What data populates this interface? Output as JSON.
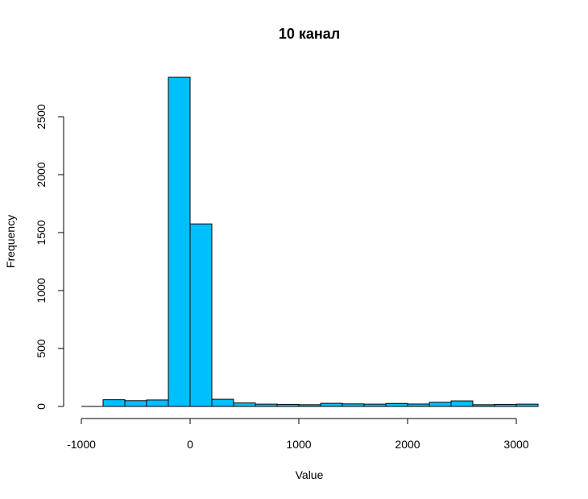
{
  "chart_data": {
    "type": "bar",
    "title": "10  канал",
    "xlabel": "Value",
    "ylabel": "Frequency",
    "bar_color": "#00BFFF",
    "bin_width": 200,
    "x_range": [
      -1000,
      3200
    ],
    "xlim": [
      -1000,
      3200
    ],
    "ylim": [
      0,
      2850
    ],
    "x_ticks": [
      -1000,
      0,
      1000,
      2000,
      3000
    ],
    "x_tick_labels": [
      "-1000",
      "0",
      "1000",
      "2000",
      "3000"
    ],
    "y_ticks": [
      0,
      500,
      1000,
      1500,
      2000,
      2500
    ],
    "y_tick_labels": [
      "0",
      "500",
      "1000",
      "1500",
      "2000",
      "2500"
    ],
    "bins": [
      {
        "start": -1000,
        "end": -800,
        "count": 0
      },
      {
        "start": -800,
        "end": -600,
        "count": 58
      },
      {
        "start": -600,
        "end": -400,
        "count": 50
      },
      {
        "start": -400,
        "end": -200,
        "count": 56
      },
      {
        "start": -200,
        "end": 0,
        "count": 2840
      },
      {
        "start": 0,
        "end": 200,
        "count": 1575
      },
      {
        "start": 200,
        "end": 400,
        "count": 62
      },
      {
        "start": 400,
        "end": 600,
        "count": 30
      },
      {
        "start": 600,
        "end": 800,
        "count": 20
      },
      {
        "start": 800,
        "end": 1000,
        "count": 18
      },
      {
        "start": 1000,
        "end": 1200,
        "count": 15
      },
      {
        "start": 1200,
        "end": 1400,
        "count": 27
      },
      {
        "start": 1400,
        "end": 1600,
        "count": 22
      },
      {
        "start": 1600,
        "end": 1800,
        "count": 20
      },
      {
        "start": 1800,
        "end": 2000,
        "count": 26
      },
      {
        "start": 2000,
        "end": 2200,
        "count": 21
      },
      {
        "start": 2200,
        "end": 2400,
        "count": 36
      },
      {
        "start": 2400,
        "end": 2600,
        "count": 48
      },
      {
        "start": 2600,
        "end": 2800,
        "count": 15
      },
      {
        "start": 2800,
        "end": 3000,
        "count": 18
      },
      {
        "start": 3000,
        "end": 3200,
        "count": 20
      }
    ]
  }
}
